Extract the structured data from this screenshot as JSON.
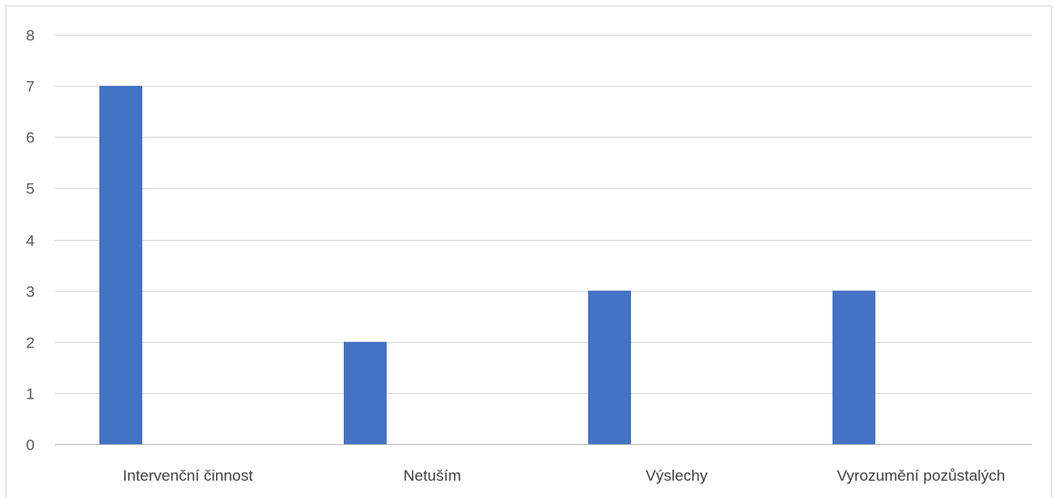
{
  "chart_data": {
    "type": "bar",
    "categories": [
      "Intervenční činnost",
      "Netuším",
      "Výslechy",
      "Vyrozumění pozůstalých"
    ],
    "series": [
      {
        "values": [
          7,
          2,
          3,
          3
        ]
      }
    ],
    "ylim": [
      0,
      8
    ],
    "yticks": [
      0,
      1,
      2,
      3,
      4,
      5,
      6,
      7,
      8
    ],
    "grid": true,
    "bar_color": "#4472c4"
  }
}
